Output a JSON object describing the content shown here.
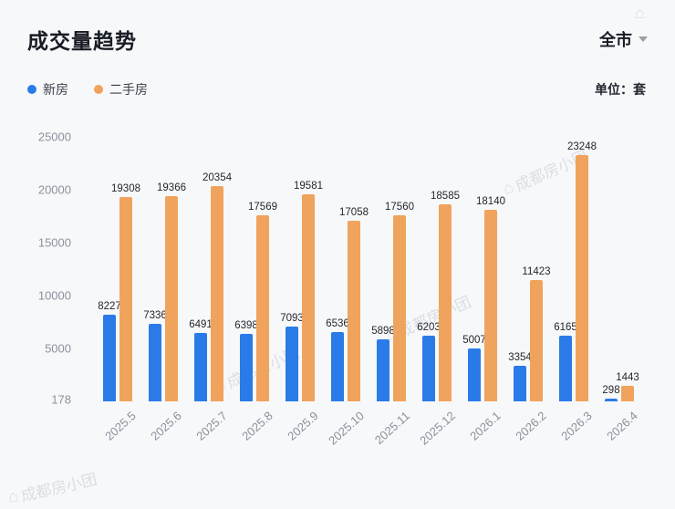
{
  "header": {
    "title": "成交量趋势",
    "region_selector": "全市",
    "unit_label": "单位：套"
  },
  "legend": [
    {
      "label": "新房",
      "color": "#2a7be8"
    },
    {
      "label": "二手房",
      "color": "#f0a35c"
    }
  ],
  "watermark": {
    "icon": "⌂",
    "text": "成都房小团"
  },
  "chart_data": {
    "type": "bar",
    "title": "成交量趋势",
    "unit": "套",
    "categories": [
      "2025.5",
      "2025.6",
      "2025.7",
      "2025.8",
      "2025.9",
      "2025.10",
      "2025.11",
      "2025.12",
      "2026.1",
      "2026.2",
      "2026.3",
      "2026.4"
    ],
    "series": [
      {
        "name": "新房",
        "color": "#2a7be8",
        "values": [
          8227,
          7336,
          6491,
          6398,
          7093,
          6536,
          5898,
          6203,
          5007,
          3354,
          6165,
          298
        ]
      },
      {
        "name": "二手房",
        "color": "#f0a35c",
        "values": [
          19308,
          19366,
          20354,
          17569,
          19581,
          17058,
          17560,
          18585,
          18140,
          11423,
          23248,
          1443
        ]
      }
    ],
    "y_ticks": [
      25000,
      20000,
      15000,
      10000,
      5000,
      178
    ],
    "ylim": [
      0,
      25000
    ],
    "grid": false,
    "legend_position": "top-left",
    "data_labels": true
  }
}
